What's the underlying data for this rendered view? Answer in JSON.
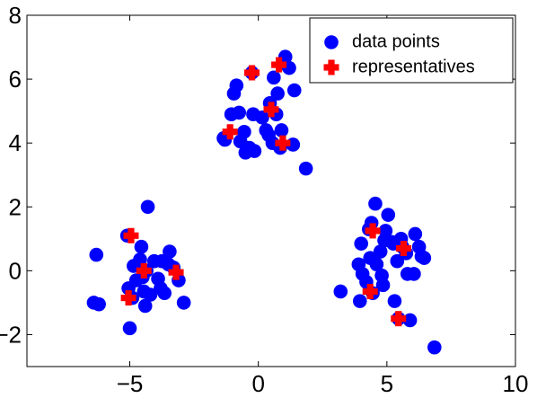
{
  "chart_data": {
    "type": "scatter",
    "title": "",
    "xlabel": "",
    "ylabel": "",
    "xlim": [
      -9,
      10
    ],
    "ylim": [
      -3,
      8
    ],
    "x_ticks": [
      -5,
      0,
      5,
      10
    ],
    "y_ticks": [
      -2,
      0,
      2,
      4,
      6,
      8
    ],
    "x_tick_labels": [
      "−5",
      "0",
      "5",
      "10"
    ],
    "y_tick_labels": [
      "−2",
      "0",
      "2",
      "4",
      "6",
      "8"
    ],
    "grid": false,
    "legend_position": "top-right",
    "series": [
      {
        "name": "data points",
        "color": "#0000ff",
        "marker": "circle",
        "points": [
          [
            -6.3,
            0.5
          ],
          [
            -6.4,
            -1.0
          ],
          [
            -6.2,
            -1.05
          ],
          [
            -5.1,
            1.1
          ],
          [
            -5.05,
            -0.55
          ],
          [
            -5.0,
            -1.8
          ],
          [
            -4.9,
            -0.85
          ],
          [
            -4.85,
            0.15
          ],
          [
            -4.75,
            -0.3
          ],
          [
            -4.6,
            0.35
          ],
          [
            -4.55,
            0.75
          ],
          [
            -4.5,
            -0.2
          ],
          [
            -4.45,
            -0.65
          ],
          [
            -4.4,
            -1.1
          ],
          [
            -4.35,
            0.0
          ],
          [
            -4.3,
            2.0
          ],
          [
            -4.2,
            -0.75
          ],
          [
            -4.05,
            0.3
          ],
          [
            -3.9,
            -0.25
          ],
          [
            -3.8,
            -0.55
          ],
          [
            -3.75,
            0.3
          ],
          [
            -3.65,
            -0.7
          ],
          [
            -3.5,
            0.2
          ],
          [
            -3.45,
            0.6
          ],
          [
            -3.3,
            0.1
          ],
          [
            -3.1,
            -0.3
          ],
          [
            -2.9,
            -1.0
          ],
          [
            -1.35,
            4.15
          ],
          [
            -1.3,
            4.1
          ],
          [
            -1.05,
            4.9
          ],
          [
            -0.95,
            5.55
          ],
          [
            -0.85,
            5.8
          ],
          [
            -0.75,
            4.95
          ],
          [
            -0.7,
            4.05
          ],
          [
            -0.55,
            4.35
          ],
          [
            -0.5,
            3.7
          ],
          [
            -0.35,
            3.85
          ],
          [
            -0.25,
            6.2
          ],
          [
            -0.2,
            4.9
          ],
          [
            -0.15,
            3.75
          ],
          [
            0.15,
            4.8
          ],
          [
            0.3,
            4.4
          ],
          [
            0.4,
            4.25
          ],
          [
            0.45,
            5.25
          ],
          [
            0.55,
            4.0
          ],
          [
            0.6,
            6.05
          ],
          [
            0.7,
            4.9
          ],
          [
            0.75,
            5.55
          ],
          [
            0.85,
            3.85
          ],
          [
            0.9,
            4.4
          ],
          [
            0.95,
            6.5
          ],
          [
            1.05,
            6.7
          ],
          [
            1.2,
            6.35
          ],
          [
            1.35,
            3.95
          ],
          [
            1.4,
            5.65
          ],
          [
            1.85,
            3.2
          ],
          [
            3.2,
            -0.65
          ],
          [
            3.9,
            0.2
          ],
          [
            3.95,
            -0.95
          ],
          [
            4.0,
            0.85
          ],
          [
            4.05,
            -0.1
          ],
          [
            4.2,
            -0.35
          ],
          [
            4.3,
            1.3
          ],
          [
            4.35,
            0.4
          ],
          [
            4.4,
            1.5
          ],
          [
            4.45,
            -0.7
          ],
          [
            4.55,
            2.1
          ],
          [
            4.6,
            0.2
          ],
          [
            4.75,
            0.6
          ],
          [
            4.8,
            -0.15
          ],
          [
            4.85,
            -0.45
          ],
          [
            4.9,
            0.95
          ],
          [
            4.95,
            1.25
          ],
          [
            5.05,
            1.75
          ],
          [
            5.2,
            0.9
          ],
          [
            5.25,
            0.85
          ],
          [
            5.3,
            -0.95
          ],
          [
            5.4,
            0.3
          ],
          [
            5.45,
            -1.5
          ],
          [
            5.55,
            1.0
          ],
          [
            5.6,
            0.75
          ],
          [
            5.75,
            0.55
          ],
          [
            5.8,
            -0.1
          ],
          [
            5.9,
            -1.55
          ],
          [
            6.05,
            -0.1
          ],
          [
            6.1,
            1.15
          ],
          [
            6.25,
            0.75
          ],
          [
            6.35,
            0.45
          ],
          [
            6.45,
            0.4
          ],
          [
            6.85,
            -2.4
          ]
        ]
      },
      {
        "name": "representatives",
        "color": "#ff0000",
        "marker": "plus",
        "points": [
          [
            -4.95,
            1.1
          ],
          [
            -4.45,
            0.0
          ],
          [
            -5.05,
            -0.85
          ],
          [
            -3.2,
            -0.05
          ],
          [
            -0.25,
            6.2
          ],
          [
            0.8,
            6.45
          ],
          [
            0.5,
            5.05
          ],
          [
            -1.1,
            4.35
          ],
          [
            0.95,
            4.0
          ],
          [
            4.45,
            1.25
          ],
          [
            5.65,
            0.7
          ],
          [
            4.35,
            -0.65
          ],
          [
            5.45,
            -1.5
          ]
        ]
      }
    ]
  }
}
